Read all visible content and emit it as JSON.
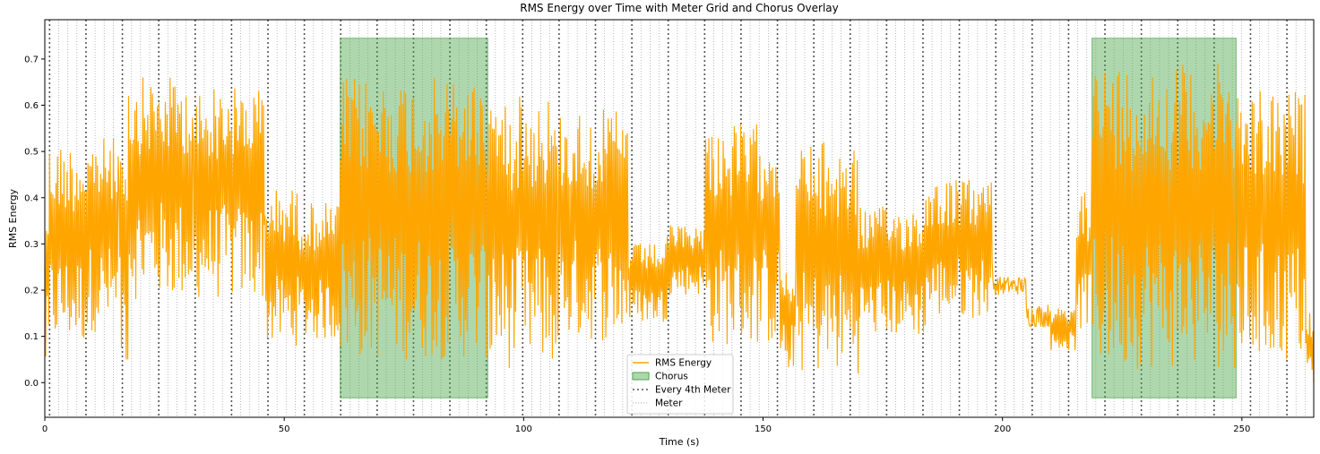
{
  "chart_data": {
    "type": "line",
    "title": "RMS Energy over Time with Meter Grid and Chorus Overlay",
    "xlabel": "Time (s)",
    "ylabel": "RMS Energy",
    "xlim": [
      0,
      265
    ],
    "ylim": [
      -0.075,
      0.785
    ],
    "x_ticks": [
      0,
      50,
      100,
      150,
      200,
      250
    ],
    "y_ticks": [
      0.0,
      0.1,
      0.2,
      0.3,
      0.4,
      0.5,
      0.6,
      0.7
    ],
    "grid": false,
    "legend_position": "lower-center",
    "legend": [
      "RMS Energy",
      "Chorus",
      "Every 4th Meter",
      "Meter"
    ],
    "colors": {
      "rms": "#FFA500",
      "chorus": "#4CA64C",
      "meter_major": "#555555",
      "meter_minor": "#AAAAAA"
    },
    "chorus_regions": [
      {
        "start": 61.7,
        "end": 92.5,
        "y_bottom": -0.033,
        "y_top": 0.745
      },
      {
        "start": 218.7,
        "end": 248.8,
        "y_bottom": -0.033,
        "y_top": 0.745
      }
    ],
    "meter_interval_s": 1.9,
    "meter_start_s": 1.0,
    "meter_major_every": 4,
    "rms_segments": [
      {
        "start": 0.0,
        "end": 1.0,
        "low": 0.0,
        "high": 0.42
      },
      {
        "start": 1.0,
        "end": 9.0,
        "low": 0.08,
        "high": 0.52
      },
      {
        "start": 9.0,
        "end": 15.5,
        "low": 0.11,
        "high": 0.53
      },
      {
        "start": 15.5,
        "end": 17.5,
        "low": 0.03,
        "high": 0.57
      },
      {
        "start": 17.5,
        "end": 31.0,
        "low": 0.18,
        "high": 0.66
      },
      {
        "start": 31.0,
        "end": 46.0,
        "low": 0.18,
        "high": 0.64
      },
      {
        "start": 46.0,
        "end": 53.0,
        "low": 0.08,
        "high": 0.42
      },
      {
        "start": 53.0,
        "end": 61.7,
        "low": 0.09,
        "high": 0.39
      },
      {
        "start": 61.7,
        "end": 92.5,
        "low": 0.05,
        "high": 0.66
      },
      {
        "start": 92.5,
        "end": 107.0,
        "low": 0.03,
        "high": 0.62
      },
      {
        "start": 107.0,
        "end": 122.0,
        "low": 0.09,
        "high": 0.59
      },
      {
        "start": 122.0,
        "end": 130.0,
        "low": 0.13,
        "high": 0.3
      },
      {
        "start": 130.0,
        "end": 138.0,
        "low": 0.19,
        "high": 0.34
      },
      {
        "start": 138.0,
        "end": 153.5,
        "low": 0.08,
        "high": 0.56
      },
      {
        "start": 153.5,
        "end": 157.0,
        "low": 0.03,
        "high": 0.25
      },
      {
        "start": 157.0,
        "end": 170.0,
        "low": 0.02,
        "high": 0.52
      },
      {
        "start": 170.0,
        "end": 184.0,
        "low": 0.1,
        "high": 0.38
      },
      {
        "start": 184.0,
        "end": 198.0,
        "low": 0.14,
        "high": 0.44
      },
      {
        "start": 198.0,
        "end": 205.0,
        "low": 0.19,
        "high": 0.23
      },
      {
        "start": 205.0,
        "end": 210.0,
        "low": 0.12,
        "high": 0.17
      },
      {
        "start": 210.0,
        "end": 215.5,
        "low": 0.07,
        "high": 0.16
      },
      {
        "start": 215.5,
        "end": 218.7,
        "low": 0.09,
        "high": 0.42
      },
      {
        "start": 218.7,
        "end": 248.8,
        "low": 0.03,
        "high": 0.69
      },
      {
        "start": 248.8,
        "end": 263.5,
        "low": 0.04,
        "high": 0.63
      },
      {
        "start": 263.5,
        "end": 265.0,
        "low": 0.0,
        "high": 0.15
      }
    ]
  }
}
